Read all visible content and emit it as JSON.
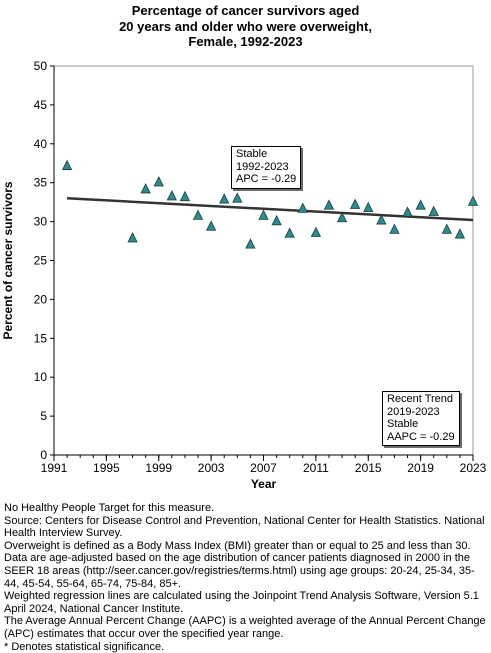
{
  "title_lines": [
    "Percentage of cancer survivors aged",
    "20 years and older who were overweight,",
    "Female,  1992-2023"
  ],
  "chart_data": {
    "type": "scatter",
    "title": "Percentage of cancer survivors aged 20 years and older who were overweight, Female,  1992-2023",
    "xlabel": "Year",
    "ylabel": "Percent of cancer survivors",
    "xlim": [
      1991,
      2023
    ],
    "ylim": [
      0,
      50
    ],
    "x_ticks": [
      1991,
      1995,
      1999,
      2003,
      2007,
      2011,
      2015,
      2019,
      2023
    ],
    "y_ticks": [
      0,
      5,
      10,
      15,
      20,
      25,
      30,
      35,
      40,
      45,
      50
    ],
    "grid": false,
    "marker_color": "#2e8b8b",
    "line_color": "#333333",
    "points": [
      {
        "x": 1992,
        "y": 37.2
      },
      {
        "x": 1997,
        "y": 27.9
      },
      {
        "x": 1998,
        "y": 34.2
      },
      {
        "x": 1999,
        "y": 35.1
      },
      {
        "x": 2000,
        "y": 33.3
      },
      {
        "x": 2001,
        "y": 33.2
      },
      {
        "x": 2002,
        "y": 30.8
      },
      {
        "x": 2003,
        "y": 29.4
      },
      {
        "x": 2004,
        "y": 32.9
      },
      {
        "x": 2005,
        "y": 33.0
      },
      {
        "x": 2006,
        "y": 27.1
      },
      {
        "x": 2007,
        "y": 30.8
      },
      {
        "x": 2008,
        "y": 30.1
      },
      {
        "x": 2009,
        "y": 28.5
      },
      {
        "x": 2010,
        "y": 31.7
      },
      {
        "x": 2011,
        "y": 28.6
      },
      {
        "x": 2012,
        "y": 32.1
      },
      {
        "x": 2013,
        "y": 30.5
      },
      {
        "x": 2014,
        "y": 32.2
      },
      {
        "x": 2015,
        "y": 31.8
      },
      {
        "x": 2016,
        "y": 30.2
      },
      {
        "x": 2017,
        "y": 29.0
      },
      {
        "x": 2018,
        "y": 31.2
      },
      {
        "x": 2019,
        "y": 32.1
      },
      {
        "x": 2020,
        "y": 31.3
      },
      {
        "x": 2021,
        "y": 29.0
      },
      {
        "x": 2022,
        "y": 28.4
      },
      {
        "x": 2023,
        "y": 32.6
      }
    ],
    "trend_line": {
      "x": [
        1992,
        2023
      ],
      "y": [
        33.0,
        30.2
      ]
    },
    "annotations": [
      {
        "lines": [
          "Stable",
          "1992-2023",
          "APC = -0.29"
        ]
      },
      {
        "lines": [
          "Recent Trend",
          "2019-2023",
          "Stable",
          "AAPC = -0.29"
        ]
      }
    ]
  },
  "notes": [
    "No Healthy People Target for this measure.",
    "Source: Centers for Disease Control and Prevention, National Center for Health Statistics. National Health Interview Survey.",
    "Overweight is defined as a Body Mass Index (BMI) greater than or equal to 25 and less than 30.",
    "Data are age-adjusted based on the age distribution of cancer patients diagnosed in 2000 in the SEER 18 areas (http://seer.cancer.gov/registries/terms.html) using age groups: 20-24, 25-34, 35-44, 45-54, 55-64, 65-74, 75-84, 85+.",
    "Weighted regression lines are calculated using the Joinpoint Trend Analysis Software, Version 5.1 April 2024, National Cancer Institute.",
    "The Average Annual Percent Change (AAPC) is a weighted average of the Annual Percent Change (APC) estimates that occur over the specified year range.",
    "* Denotes statistical significance."
  ]
}
